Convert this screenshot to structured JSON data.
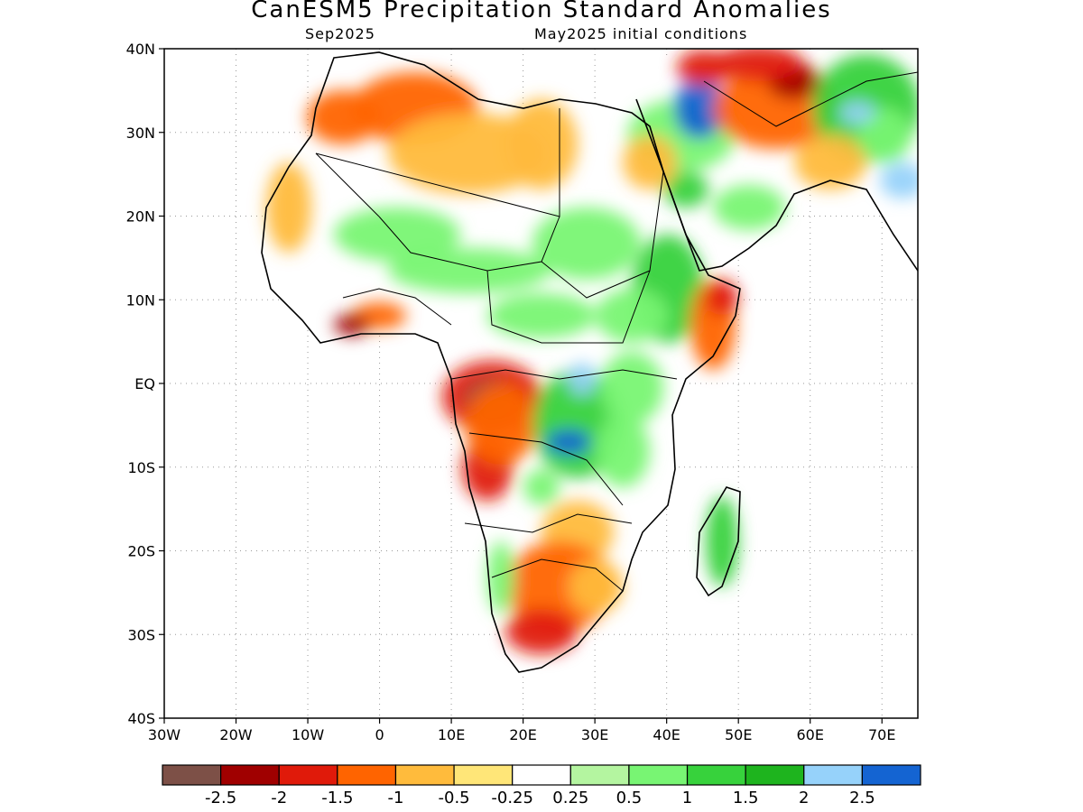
{
  "title": "CanESM5 Precipitation Standard Anomalies",
  "subtitle_left": "Sep2025",
  "subtitle_right": "May2025 initial conditions",
  "map": {
    "lon_range": [
      -30,
      75
    ],
    "lat_range": [
      -40,
      40
    ],
    "lat_ticks": [
      {
        "lat": 40,
        "label": "40N"
      },
      {
        "lat": 30,
        "label": "30N"
      },
      {
        "lat": 20,
        "label": "20N"
      },
      {
        "lat": 10,
        "label": "10N"
      },
      {
        "lat": 0,
        "label": "EQ"
      },
      {
        "lat": -10,
        "label": "10S"
      },
      {
        "lat": -20,
        "label": "20S"
      },
      {
        "lat": -30,
        "label": "30S"
      },
      {
        "lat": -40,
        "label": "40S"
      }
    ],
    "lon_ticks": [
      {
        "lon": -30,
        "label": "30W"
      },
      {
        "lon": -20,
        "label": "20W"
      },
      {
        "lon": -10,
        "label": "10W"
      },
      {
        "lon": 0,
        "label": "0"
      },
      {
        "lon": 10,
        "label": "10E"
      },
      {
        "lon": 20,
        "label": "20E"
      },
      {
        "lon": 30,
        "label": "30E"
      },
      {
        "lon": 40,
        "label": "40E"
      },
      {
        "lon": 50,
        "label": "50E"
      },
      {
        "lon": 60,
        "label": "60E"
      },
      {
        "lon": 70,
        "label": "70E"
      }
    ],
    "grid": true,
    "grid_style": "dotted"
  },
  "colorbar": {
    "colors": [
      "#7d5047",
      "#a00000",
      "#e01a0a",
      "#ff6400",
      "#ffbb3c",
      "#ffe678",
      "#ffffff",
      "#b4f5a0",
      "#78f573",
      "#37d23c",
      "#1eb41e",
      "#96d2fa",
      "#1464d2"
    ],
    "labels": [
      "-2.5",
      "-2",
      "-1.5",
      "-1",
      "-0.5",
      "-0.25",
      "0.25",
      "0.5",
      "1",
      "1.5",
      "2",
      "2.5"
    ]
  }
}
